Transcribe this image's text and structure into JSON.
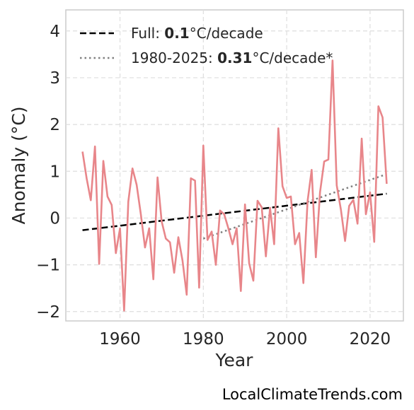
{
  "chart_data": {
    "type": "line",
    "xlabel": "Year",
    "ylabel": "Anomaly (°C)",
    "xlim": [
      1947,
      2028
    ],
    "ylim": [
      -2.2,
      4.45
    ],
    "xticks": [
      1960,
      1980,
      2000,
      2020
    ],
    "yticks": [
      -2,
      -1,
      0,
      1,
      2,
      3,
      4
    ],
    "grid": true,
    "legend_position": "top-left",
    "series": [
      {
        "color": "#e8868a",
        "x": [
          1951,
          1952,
          1953,
          1954,
          1955,
          1956,
          1957,
          1958,
          1959,
          1960,
          1961,
          1962,
          1963,
          1964,
          1965,
          1966,
          1967,
          1968,
          1969,
          1970,
          1971,
          1972,
          1973,
          1974,
          1975,
          1976,
          1977,
          1978,
          1979,
          1980,
          1981,
          1982,
          1983,
          1984,
          1985,
          1986,
          1987,
          1988,
          1989,
          1990,
          1991,
          1992,
          1993,
          1994,
          1995,
          1996,
          1997,
          1998,
          1999,
          2000,
          2001,
          2002,
          2003,
          2004,
          2005,
          2006,
          2007,
          2008,
          2009,
          2010,
          2011,
          2012,
          2013,
          2014,
          2015,
          2016,
          2017,
          2018,
          2019,
          2020,
          2021,
          2022,
          2023,
          2024
        ],
        "y": [
          1.42,
          0.85,
          0.38,
          1.53,
          -0.98,
          1.22,
          0.46,
          0.28,
          -0.75,
          -0.22,
          -1.98,
          0.35,
          1.06,
          0.71,
          0.08,
          -0.63,
          -0.22,
          -1.31,
          0.87,
          -0.07,
          -0.44,
          -0.52,
          -1.17,
          -0.41,
          -0.91,
          -1.64,
          0.85,
          0.8,
          -1.49,
          1.55,
          -0.47,
          -0.29,
          -1.0,
          0.16,
          0.08,
          -0.22,
          -0.56,
          -0.22,
          -1.56,
          0.29,
          -0.97,
          -1.34,
          0.37,
          0.23,
          -0.82,
          0.22,
          -0.56,
          1.92,
          0.68,
          0.43,
          0.46,
          -0.56,
          -0.32,
          -1.39,
          0.36,
          1.03,
          -0.84,
          0.55,
          1.21,
          1.25,
          3.37,
          0.7,
          0.18,
          -0.49,
          0.26,
          0.39,
          -0.12,
          1.7,
          0.08,
          0.55,
          -0.51,
          2.39,
          2.15,
          0.73
        ]
      }
    ],
    "trends": [
      {
        "label": "Full: ",
        "value": "0.1",
        "unit": "°C/decade",
        "style": "dashed",
        "color": "#000000",
        "x": [
          1951,
          2024
        ],
        "y": [
          -0.26,
          0.52
        ]
      },
      {
        "label": "1980-2025: ",
        "value": "0.31",
        "unit": "°C/decade*",
        "style": "dotted",
        "color": "#808080",
        "x": [
          1980,
          2024
        ],
        "y": [
          -0.44,
          0.94
        ]
      }
    ]
  },
  "footer": "LocalClimateTrends.com"
}
